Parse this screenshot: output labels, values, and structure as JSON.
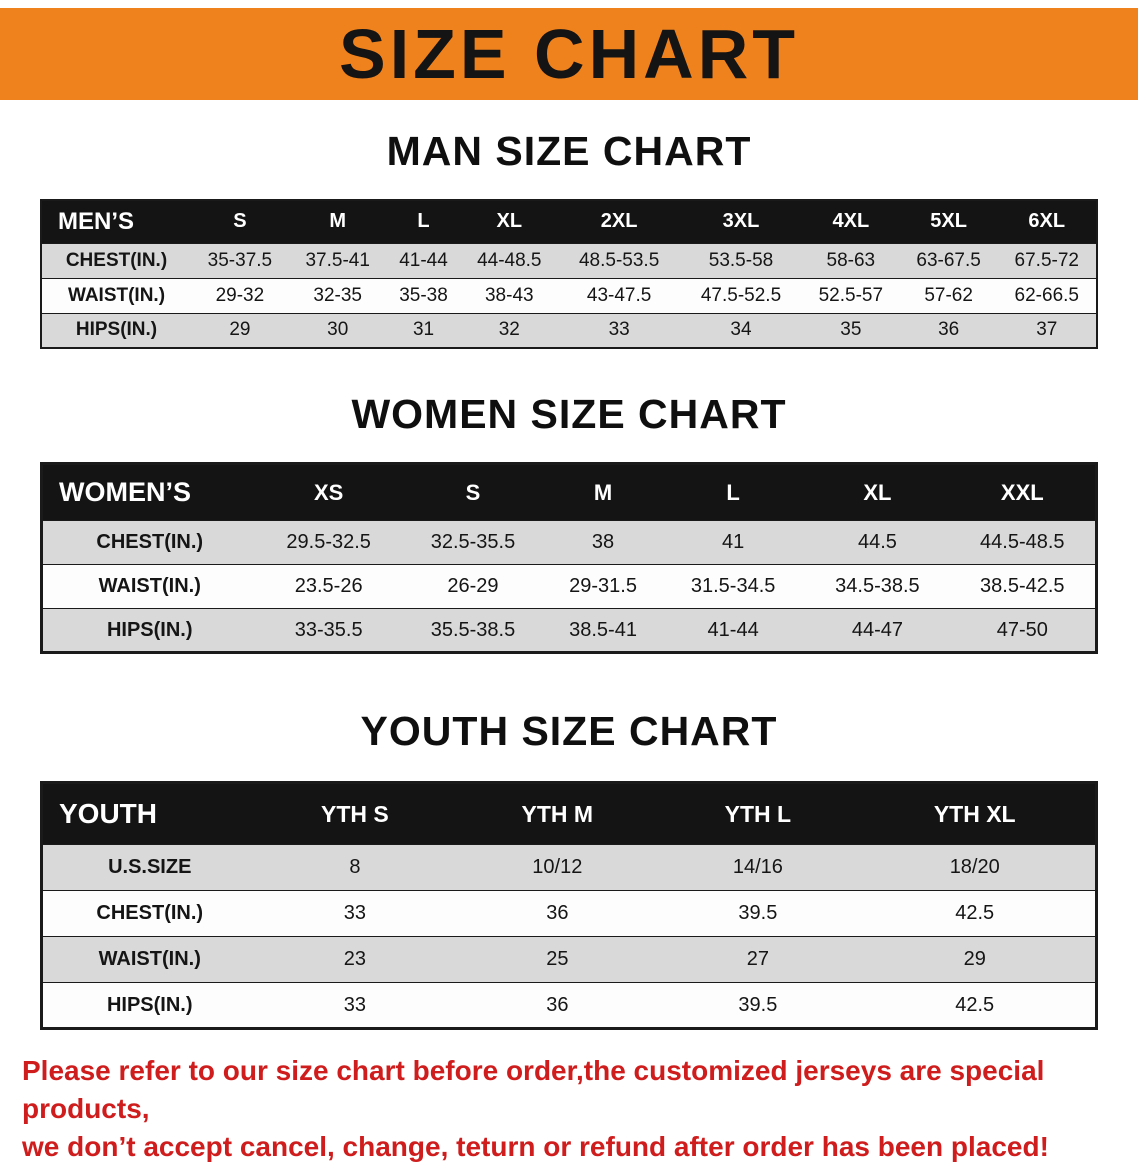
{
  "banner": {
    "title": "SIZE CHART"
  },
  "sections": [
    {
      "id": "men",
      "heading": "MAN SIZE CHART",
      "table": {
        "header": [
          "MEN’S",
          "S",
          "M",
          "L",
          "XL",
          "2XL",
          "3XL",
          "4XL",
          "5XL",
          "6XL"
        ],
        "rows": [
          [
            "CHEST(IN.)",
            "35-37.5",
            "37.5-41",
            "41-44",
            "44-48.5",
            "48.5-53.5",
            "53.5-58",
            "58-63",
            "63-67.5",
            "67.5-72"
          ],
          [
            "WAIST(IN.)",
            "29-32",
            "32-35",
            "35-38",
            "38-43",
            "43-47.5",
            "47.5-52.5",
            "52.5-57",
            "57-62",
            "62-66.5"
          ],
          [
            "HIPS(IN.)",
            "29",
            "30",
            "31",
            "32",
            "33",
            "34",
            "35",
            "36",
            "37"
          ]
        ]
      }
    },
    {
      "id": "women",
      "heading": "WOMEN SIZE CHART",
      "table": {
        "header": [
          "WOMEN’S",
          "XS",
          "S",
          "M",
          "L",
          "XL",
          "XXL"
        ],
        "rows": [
          [
            "CHEST(IN.)",
            "29.5-32.5",
            "32.5-35.5",
            "38",
            "41",
            "44.5",
            "44.5-48.5"
          ],
          [
            "WAIST(IN.)",
            "23.5-26",
            "26-29",
            "29-31.5",
            "31.5-34.5",
            "34.5-38.5",
            "38.5-42.5"
          ],
          [
            "HIPS(IN.)",
            "33-35.5",
            "35.5-38.5",
            "38.5-41",
            "41-44",
            "44-47",
            "47-50"
          ]
        ]
      }
    },
    {
      "id": "youth",
      "heading": "YOUTH SIZE CHART",
      "table": {
        "header": [
          "YOUTH",
          "YTH S",
          "YTH M",
          "YTH L",
          "YTH XL"
        ],
        "rows": [
          [
            "U.S.SIZE",
            "8",
            "10/12",
            "14/16",
            "18/20"
          ],
          [
            "CHEST(IN.)",
            "33",
            "36",
            "39.5",
            "42.5"
          ],
          [
            "WAIST(IN.)",
            "23",
            "25",
            "27",
            "29"
          ],
          [
            "HIPS(IN.)",
            "33",
            "36",
            "39.5",
            "42.5"
          ]
        ]
      }
    }
  ],
  "disclaimer": {
    "line1": "Please refer to our size chart before order,the customized jerseys are special products,",
    "line2": "we don’t accept cancel, change, teturn or refund after order has been placed!"
  },
  "colors": {
    "banner-orange": "#f0821e",
    "header-black": "#141414",
    "row-gray": "#d9d9d9",
    "row-white": "#fdfdfd",
    "border-black": "#1a1a1a",
    "disclaimer-red": "#cf1d1d"
  }
}
